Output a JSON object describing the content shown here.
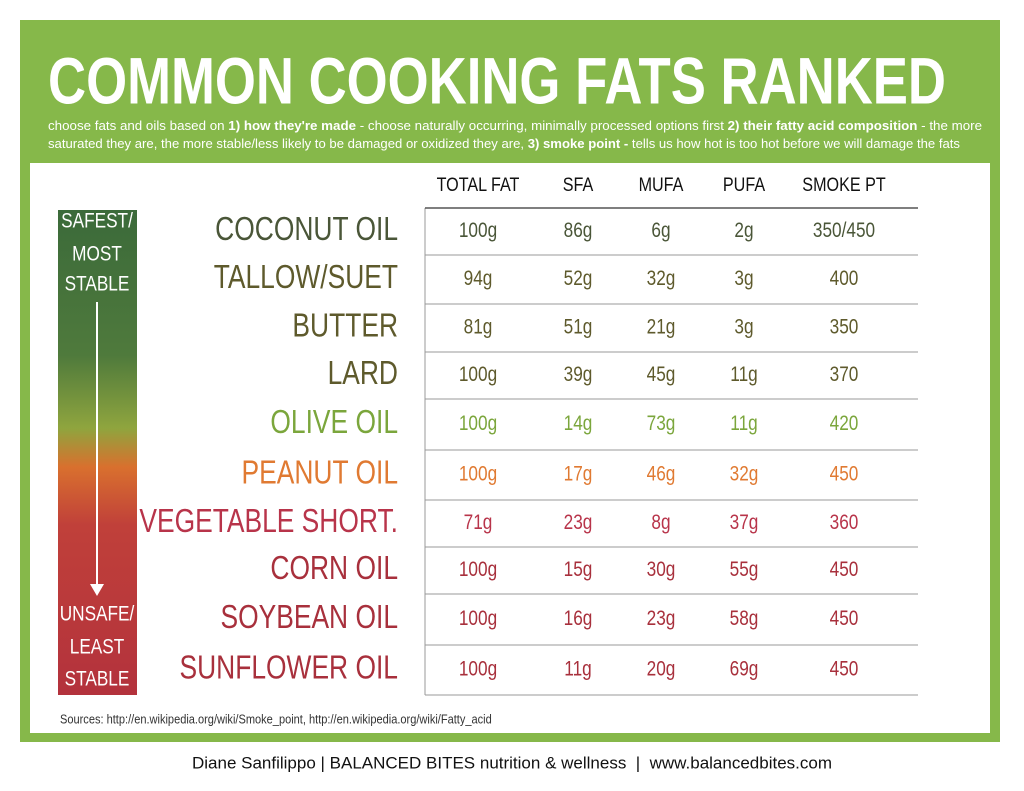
{
  "header": {
    "title": "COMMON COOKING FATS RANKED",
    "subtitle": [
      [
        {
          "text": "choose fats and oils based on ",
          "bold": false
        },
        {
          "text": "1) how they're made",
          "bold": true
        },
        {
          "text": " - choose naturally occurring, minimally processed options first ",
          "bold": false
        },
        {
          "text": "2) their fatty acid composition",
          "bold": true
        },
        {
          "text": " - the more",
          "bold": false
        }
      ],
      [
        {
          "text": "saturated they are, the more stable/less likely to be damaged or oxidized they are, ",
          "bold": false
        },
        {
          "text": "3) smoke point -",
          "bold": true
        },
        {
          "text": " tells us how hot is too hot before we will damage the fats",
          "bold": false
        }
      ]
    ]
  },
  "sidebar": {
    "top": [
      "SAFEST/",
      "MOST",
      "STABLE"
    ],
    "bottom": [
      "UNSAFE/",
      "LEAST",
      "STABLE"
    ]
  },
  "table": {
    "columns": [
      "TOTAL FAT",
      "SFA",
      "MUFA",
      "PUFA",
      "SMOKE PT"
    ],
    "rows": [
      {
        "name": "COCONUT OIL",
        "color": "#4a5638",
        "cells": [
          "100g",
          "86g",
          "6g",
          "2g",
          "350/450"
        ]
      },
      {
        "name": "TALLOW/SUET",
        "color": "#5e5a2c",
        "cells": [
          "94g",
          "52g",
          "32g",
          "3g",
          "400"
        ]
      },
      {
        "name": "BUTTER",
        "color": "#5e5a2c",
        "cells": [
          "81g",
          "51g",
          "21g",
          "3g",
          "350"
        ]
      },
      {
        "name": "LARD",
        "color": "#5e5a2c",
        "cells": [
          "100g",
          "39g",
          "45g",
          "11g",
          "370"
        ]
      },
      {
        "name": "OLIVE OIL",
        "color": "#7ba63c",
        "cells": [
          "100g",
          "14g",
          "73g",
          "11g",
          "420"
        ]
      },
      {
        "name": "PEANUT OIL",
        "color": "#e07a32",
        "cells": [
          "100g",
          "17g",
          "46g",
          "32g",
          "450"
        ]
      },
      {
        "name": "VEGETABLE SHORT.",
        "color": "#b8344a",
        "cells": [
          "71g",
          "23g",
          "8g",
          "37g",
          "360"
        ]
      },
      {
        "name": "CORN OIL",
        "color": "#a8303c",
        "cells": [
          "100g",
          "15g",
          "30g",
          "55g",
          "450"
        ]
      },
      {
        "name": "SOYBEAN OIL",
        "color": "#a8303c",
        "cells": [
          "100g",
          "16g",
          "23g",
          "58g",
          "450"
        ]
      },
      {
        "name": "SUNFLOWER OIL",
        "color": "#a8303c",
        "cells": [
          "100g",
          "11g",
          "20g",
          "69g",
          "450"
        ]
      }
    ]
  },
  "sources": "Sources: http://en.wikipedia.org/wiki/Smoke_point, http://en.wikipedia.org/wiki/Fatty_acid",
  "footer": "Diane Sanfilippo | BALANCED BITES nutrition & wellness  |  www.balancedbites.com"
}
